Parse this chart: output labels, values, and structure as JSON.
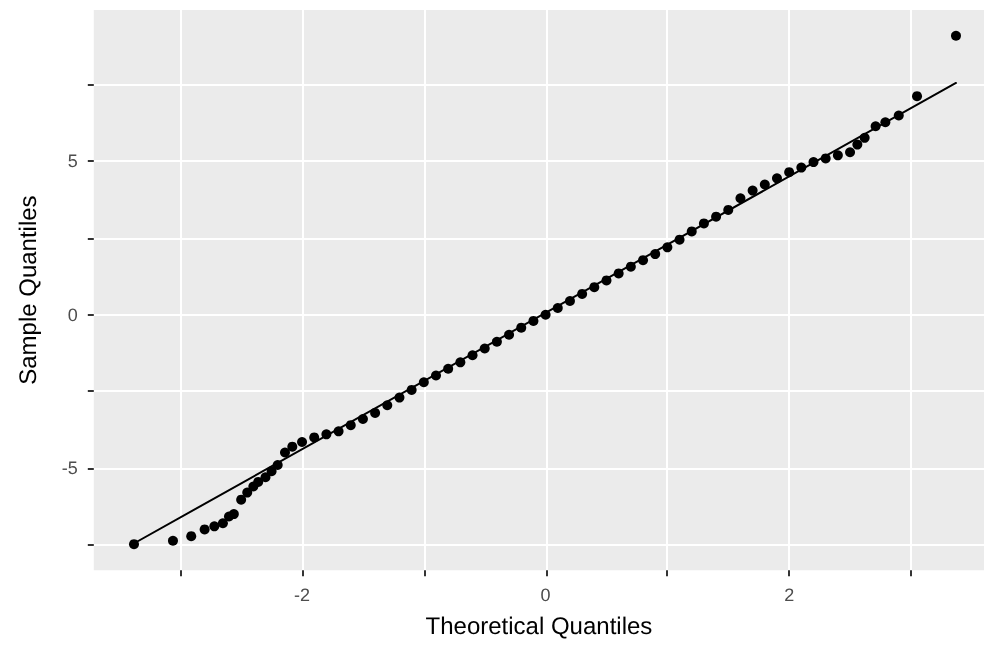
{
  "chart_data": {
    "type": "scatter",
    "xlabel": "Theoretical Quantiles",
    "ylabel": "Sample Quantiles",
    "xlim": [
      -3.71,
      3.6
    ],
    "ylim": [
      -8.33,
      9.94
    ],
    "xticks": [
      {
        "value": -3,
        "label": null
      },
      -2,
      {
        "value": -1,
        "label": null
      },
      0,
      {
        "value": 1,
        "label": null
      },
      2,
      {
        "value": 3,
        "label": null
      }
    ],
    "yticks": [
      {
        "value": -7.5,
        "label": null
      },
      -5,
      {
        "value": -2.5,
        "label": null
      },
      0,
      {
        "value": 2.5,
        "label": null
      },
      5,
      {
        "value": 7.5,
        "label": null
      }
    ],
    "grid": true,
    "marker": "circle",
    "series": [
      {
        "color": "#000000",
        "x": [
          -3.38,
          -3.06,
          -2.91,
          -2.8,
          -2.72,
          -2.65,
          -2.6,
          -2.56,
          -2.5,
          -2.45,
          -2.4,
          -2.36,
          -2.3,
          -2.25,
          -2.2,
          -2.14,
          -2.08,
          -2.0,
          -1.9,
          -1.8,
          -1.7,
          -1.6,
          -1.5,
          -1.4,
          -1.3,
          -1.2,
          -1.1,
          -1.0,
          -0.9,
          -0.8,
          -0.7,
          -0.6,
          -0.5,
          -0.4,
          -0.3,
          -0.2,
          -0.1,
          0,
          0.1,
          0.2,
          0.3,
          0.4,
          0.5,
          0.6,
          0.7,
          0.8,
          0.9,
          1.0,
          1.1,
          1.2,
          1.3,
          1.4,
          1.5,
          1.6,
          1.7,
          1.8,
          1.9,
          2.0,
          2.1,
          2.2,
          2.3,
          2.4,
          2.5,
          2.56,
          2.62,
          2.71,
          2.79,
          2.9,
          3.05,
          3.37
        ],
        "values": [
          -7.48,
          -7.37,
          -7.22,
          -7.0,
          -6.9,
          -6.8,
          -6.58,
          -6.5,
          -6.03,
          -5.8,
          -5.6,
          -5.45,
          -5.3,
          -5.1,
          -4.9,
          -4.49,
          -4.3,
          -4.15,
          -4.0,
          -3.9,
          -3.8,
          -3.6,
          -3.4,
          -3.2,
          -2.95,
          -2.7,
          -2.45,
          -2.2,
          -1.98,
          -1.76,
          -1.55,
          -1.32,
          -1.1,
          -0.88,
          -0.65,
          -0.42,
          -0.2,
          0,
          0.22,
          0.45,
          0.68,
          0.9,
          1.12,
          1.35,
          1.57,
          1.78,
          1.98,
          2.2,
          2.45,
          2.72,
          2.98,
          3.2,
          3.42,
          3.8,
          4.05,
          4.25,
          4.45,
          4.65,
          4.8,
          4.98,
          5.1,
          5.2,
          5.3,
          5.55,
          5.77,
          6.15,
          6.28,
          6.5,
          7.13,
          9.1
        ]
      },
      {
        "type": "line",
        "color": "#000000",
        "line_style": "solid",
        "marker": "none",
        "x": [
          -3.4,
          3.37
        ],
        "values": [
          -7.5,
          7.56
        ]
      }
    ]
  }
}
